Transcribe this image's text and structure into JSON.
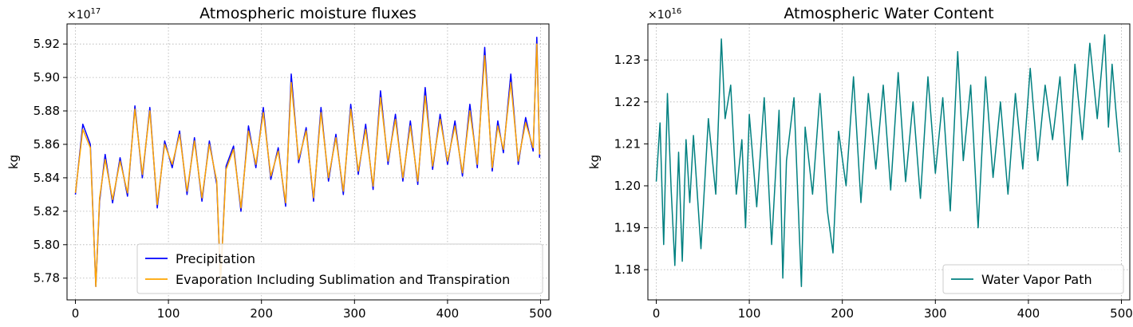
{
  "chart_data": [
    {
      "type": "line",
      "title": "Atmospheric moisture fluxes",
      "xlabel": "",
      "ylabel": "kg",
      "y_offset_base": "×10",
      "y_offset_exp": "17",
      "xlim": [
        -9,
        509
      ],
      "ylim": [
        5.767,
        5.932
      ],
      "xticks": [
        "0",
        "100",
        "200",
        "300",
        "400",
        "500"
      ],
      "yticks": [
        "5.78",
        "5.80",
        "5.82",
        "5.84",
        "5.86",
        "5.88",
        "5.90",
        "5.92"
      ],
      "grid": true,
      "legend_position": "lower-right",
      "series": [
        {
          "name": "Precipitation",
          "color": "#0000ff",
          "x": [
            0,
            8,
            16,
            22,
            26,
            32,
            40,
            48,
            56,
            64,
            72,
            80,
            88,
            96,
            104,
            112,
            120,
            128,
            136,
            144,
            152,
            156,
            162,
            170,
            178,
            186,
            194,
            202,
            210,
            218,
            226,
            232,
            240,
            248,
            256,
            264,
            272,
            280,
            288,
            296,
            304,
            312,
            320,
            328,
            336,
            344,
            352,
            360,
            368,
            376,
            384,
            392,
            400,
            408,
            416,
            424,
            432,
            440,
            448,
            454,
            460,
            468,
            476,
            484,
            492,
            496,
            499
          ],
          "values": [
            5.83,
            5.872,
            5.86,
            5.775,
            5.826,
            5.854,
            5.825,
            5.852,
            5.829,
            5.883,
            5.84,
            5.882,
            5.822,
            5.862,
            5.846,
            5.868,
            5.83,
            5.864,
            5.826,
            5.862,
            5.836,
            5.778,
            5.847,
            5.859,
            5.82,
            5.871,
            5.846,
            5.882,
            5.839,
            5.858,
            5.823,
            5.902,
            5.849,
            5.87,
            5.826,
            5.882,
            5.838,
            5.866,
            5.83,
            5.884,
            5.842,
            5.872,
            5.833,
            5.892,
            5.848,
            5.878,
            5.838,
            5.874,
            5.836,
            5.894,
            5.845,
            5.878,
            5.848,
            5.874,
            5.841,
            5.884,
            5.846,
            5.918,
            5.844,
            5.874,
            5.855,
            5.902,
            5.848,
            5.876,
            5.856,
            5.924,
            5.852
          ]
        },
        {
          "name": "Evaporation Including Sublimation and Transpiration",
          "color": "#ffa500",
          "x": [
            0,
            8,
            16,
            22,
            26,
            32,
            40,
            48,
            56,
            64,
            72,
            80,
            88,
            96,
            104,
            112,
            120,
            128,
            136,
            144,
            152,
            156,
            162,
            170,
            178,
            186,
            194,
            202,
            210,
            218,
            226,
            232,
            240,
            248,
            256,
            264,
            272,
            280,
            288,
            296,
            304,
            312,
            320,
            328,
            336,
            344,
            352,
            360,
            368,
            376,
            384,
            392,
            400,
            408,
            416,
            424,
            432,
            440,
            448,
            454,
            460,
            468,
            476,
            484,
            492,
            496,
            499
          ],
          "values": [
            5.831,
            5.869,
            5.858,
            5.775,
            5.828,
            5.851,
            5.827,
            5.85,
            5.831,
            5.881,
            5.842,
            5.88,
            5.824,
            5.86,
            5.848,
            5.866,
            5.832,
            5.862,
            5.828,
            5.86,
            5.838,
            5.778,
            5.845,
            5.857,
            5.822,
            5.868,
            5.848,
            5.879,
            5.841,
            5.856,
            5.825,
            5.897,
            5.851,
            5.868,
            5.828,
            5.879,
            5.84,
            5.864,
            5.832,
            5.881,
            5.844,
            5.869,
            5.835,
            5.888,
            5.85,
            5.875,
            5.84,
            5.871,
            5.838,
            5.889,
            5.847,
            5.875,
            5.85,
            5.871,
            5.843,
            5.88,
            5.848,
            5.913,
            5.846,
            5.871,
            5.857,
            5.897,
            5.85,
            5.873,
            5.858,
            5.92,
            5.854
          ]
        }
      ]
    },
    {
      "type": "line",
      "title": "Atmospheric Water Content",
      "xlabel": "",
      "ylabel": "kg",
      "y_offset_base": "×10",
      "y_offset_exp": "16",
      "xlim": [
        -9,
        509
      ],
      "ylim": [
        1.1728,
        1.2386
      ],
      "xticks": [
        "0",
        "100",
        "200",
        "300",
        "400",
        "500"
      ],
      "yticks": [
        "1.18",
        "1.19",
        "1.20",
        "1.21",
        "1.22",
        "1.23"
      ],
      "grid": true,
      "legend_position": "lower-right",
      "series": [
        {
          "name": "Water Vapor Path",
          "color": "#008080",
          "x": [
            0,
            4,
            8,
            12,
            16,
            20,
            24,
            28,
            32,
            36,
            40,
            48,
            56,
            64,
            70,
            74,
            80,
            86,
            92,
            96,
            100,
            108,
            116,
            124,
            132,
            136,
            140,
            148,
            156,
            160,
            168,
            176,
            184,
            190,
            196,
            204,
            212,
            220,
            228,
            236,
            244,
            252,
            260,
            268,
            276,
            284,
            292,
            300,
            308,
            316,
            324,
            330,
            338,
            346,
            354,
            362,
            370,
            378,
            386,
            394,
            402,
            410,
            418,
            426,
            434,
            442,
            450,
            458,
            466,
            474,
            482,
            486,
            490,
            494,
            498
          ],
          "values": [
            1.201,
            1.215,
            1.186,
            1.222,
            1.199,
            1.181,
            1.208,
            1.182,
            1.211,
            1.196,
            1.212,
            1.185,
            1.216,
            1.198,
            1.235,
            1.216,
            1.224,
            1.198,
            1.211,
            1.19,
            1.217,
            1.195,
            1.221,
            1.186,
            1.218,
            1.178,
            1.206,
            1.221,
            1.176,
            1.214,
            1.198,
            1.222,
            1.194,
            1.184,
            1.213,
            1.2,
            1.226,
            1.196,
            1.222,
            1.204,
            1.224,
            1.199,
            1.227,
            1.201,
            1.22,
            1.197,
            1.226,
            1.203,
            1.221,
            1.194,
            1.232,
            1.206,
            1.224,
            1.19,
            1.226,
            1.202,
            1.22,
            1.198,
            1.222,
            1.204,
            1.228,
            1.206,
            1.224,
            1.211,
            1.226,
            1.2,
            1.229,
            1.211,
            1.234,
            1.216,
            1.236,
            1.214,
            1.229,
            1.218,
            1.208
          ]
        }
      ]
    }
  ]
}
